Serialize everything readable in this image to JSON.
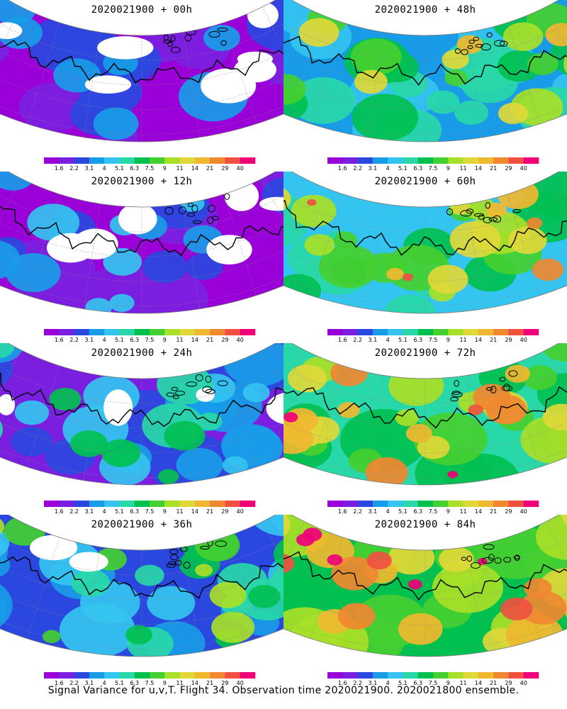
{
  "caption": "Signal Variance for u,v,T. Flight 34. Observation time 2020021900. 2020021800 ensemble.",
  "legend": {
    "colors": [
      "#9a00d8",
      "#7a1fe0",
      "#2a48e0",
      "#189ce8",
      "#34c4f0",
      "#28d8a8",
      "#00c050",
      "#44d030",
      "#a8e028",
      "#e0d838",
      "#f0b830",
      "#f08830",
      "#f05040",
      "#f00078"
    ],
    "labels": [
      "1.6",
      "2.2",
      "3.1",
      "4",
      "5.1",
      "6.3",
      "7.5",
      "9",
      "11",
      "14",
      "21",
      "29",
      "40"
    ]
  },
  "panels": [
    {
      "title": "2020021900 + 00h",
      "level": 0
    },
    {
      "title": "2020021900 + 48h",
      "level": 4
    },
    {
      "title": "2020021900 + 12h",
      "level": 1
    },
    {
      "title": "2020021900 + 60h",
      "level": 5
    },
    {
      "title": "2020021900 + 24h",
      "level": 2
    },
    {
      "title": "2020021900 + 72h",
      "level": 6
    },
    {
      "title": "2020021900 + 36h",
      "level": 3
    },
    {
      "title": "2020021900 + 84h",
      "level": 7
    }
  ]
}
